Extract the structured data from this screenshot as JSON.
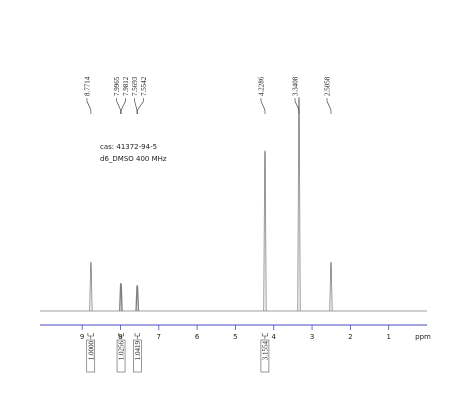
{
  "chart_data": {
    "type": "nmr",
    "annotations": [
      "cas:  41372-94-5",
      "d6_DMSO  400  MHz"
    ],
    "x_label": "ppm",
    "xlim": [
      10.1,
      0
    ],
    "xticks": [
      9,
      8,
      7,
      6,
      5,
      4,
      3,
      2,
      1
    ],
    "ylim": [
      0,
      100
    ],
    "color": "#7f7f7f",
    "axis_color": "#4a4ac0",
    "peaks": [
      {
        "ppm": 8.7714,
        "height": 23
      },
      {
        "ppm": 7.9965,
        "height": 13
      },
      {
        "ppm": 7.9812,
        "height": 13
      },
      {
        "ppm": 7.5693,
        "height": 12
      },
      {
        "ppm": 7.5542,
        "height": 12
      },
      {
        "ppm": 4.2286,
        "height": 75
      },
      {
        "ppm": 3.3408,
        "height": 100
      },
      {
        "ppm": 2.5058,
        "height": 23
      }
    ],
    "integrals": [
      {
        "from": 8.85,
        "to": 8.7,
        "value": 1,
        "label": "1.0000"
      },
      {
        "from": 8.05,
        "to": 7.92,
        "value": 1.0256,
        "label": "1.0256"
      },
      {
        "from": 7.62,
        "to": 7.5,
        "value": 1.0419,
        "label": "1.0419"
      },
      {
        "from": 4.3,
        "to": 4.16,
        "value": 3.1554,
        "label": "3.1554"
      }
    ]
  }
}
